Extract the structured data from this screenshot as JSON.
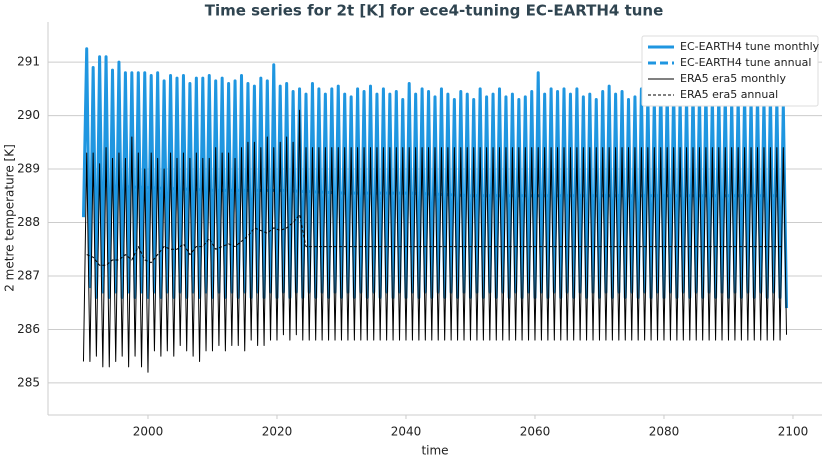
{
  "chart_data": {
    "type": "line",
    "title": "Time series for 2t [K] for ece4-tuning EC-EARTH4 tune",
    "x_label": "time",
    "y_label": "2 metre temperature [K]",
    "xlim": [
      1984.5,
      2104.5
    ],
    "ylim": [
      284.4,
      291.75
    ],
    "xticks": [
      2000,
      2020,
      2040,
      2060,
      2080,
      2100
    ],
    "yticks": [
      285,
      286,
      287,
      288,
      289,
      290,
      291
    ],
    "grid": true,
    "legend": "upper right",
    "x": [
      1990,
      1990.5,
      1991,
      1991.5,
      1992,
      1992.5,
      1993,
      1993.5,
      1994,
      1994.5,
      1995,
      1995.5,
      1996,
      1996.5,
      1997,
      1997.5,
      1998,
      1998.5,
      1999,
      1999.5,
      2000,
      2000.5,
      2001,
      2001.5,
      2002,
      2002.5,
      2003,
      2003.5,
      2004,
      2004.5,
      2005,
      2005.5,
      2006,
      2006.5,
      2007,
      2007.5,
      2008,
      2008.5,
      2009,
      2009.5,
      2010,
      2010.5,
      2011,
      2011.5,
      2012,
      2012.5,
      2013,
      2013.5,
      2014,
      2014.5,
      2015,
      2015.5,
      2016,
      2016.5,
      2017,
      2017.5,
      2018,
      2018.5,
      2019,
      2019.5,
      2020,
      2020.5,
      2021,
      2021.5,
      2022,
      2022.5,
      2023,
      2023.5,
      2024,
      2024.5,
      2025,
      2025.5,
      2026,
      2026.5,
      2027,
      2027.5,
      2028,
      2028.5,
      2029,
      2029.5,
      2030,
      2030.5,
      2031,
      2031.5,
      2032,
      2032.5,
      2033,
      2033.5,
      2034,
      2034.5,
      2035,
      2035.5,
      2036,
      2036.5,
      2037,
      2037.5,
      2038,
      2038.5,
      2039,
      2039.5,
      2040,
      2040.5,
      2041,
      2041.5,
      2042,
      2042.5,
      2043,
      2043.5,
      2044,
      2044.5,
      2045,
      2045.5,
      2046,
      2046.5,
      2047,
      2047.5,
      2048,
      2048.5,
      2049,
      2049.5,
      2050,
      2050.5,
      2051,
      2051.5,
      2052,
      2052.5,
      2053,
      2053.5,
      2054,
      2054.5,
      2055,
      2055.5,
      2056,
      2056.5,
      2057,
      2057.5,
      2058,
      2058.5,
      2059,
      2059.5,
      2060,
      2060.5,
      2061,
      2061.5,
      2062,
      2062.5,
      2063,
      2063.5,
      2064,
      2064.5,
      2065,
      2065.5,
      2066,
      2066.5,
      2067,
      2067.5,
      2068,
      2068.5,
      2069,
      2069.5,
      2070,
      2070.5,
      2071,
      2071.5,
      2072,
      2072.5,
      2073,
      2073.5,
      2074,
      2074.5,
      2075,
      2075.5,
      2076,
      2076.5,
      2077,
      2077.5,
      2078,
      2078.5,
      2079,
      2079.5,
      2080,
      2080.5,
      2081,
      2081.5,
      2082,
      2082.5,
      2083,
      2083.5,
      2084,
      2084.5,
      2085,
      2085.5,
      2086,
      2086.5,
      2087,
      2087.5,
      2088,
      2088.5,
      2089,
      2089.5,
      2090,
      2090.5,
      2091,
      2091.5,
      2092,
      2092.5,
      2093,
      2093.5,
      2094,
      2094.5,
      2095,
      2095.5,
      2096,
      2096.5,
      2097,
      2097.5,
      2098,
      2098.5,
      2099
    ],
    "series": [
      {
        "name": "EC-EARTH4 tune monthly",
        "color": "#1f96e0",
        "line_style": "solid",
        "width": 3,
        "values": [
          288.1,
          291.25,
          286.8,
          290.9,
          286.6,
          291.1,
          286.7,
          291.1,
          286.6,
          290.85,
          286.7,
          291.0,
          286.6,
          290.8,
          286.7,
          290.8,
          286.6,
          290.8,
          286.7,
          290.8,
          286.6,
          290.75,
          286.7,
          290.8,
          286.6,
          290.65,
          286.7,
          290.75,
          286.6,
          290.7,
          286.7,
          290.75,
          286.6,
          290.6,
          286.7,
          290.7,
          286.6,
          290.7,
          286.7,
          290.75,
          286.6,
          290.65,
          286.7,
          290.7,
          286.6,
          290.6,
          286.7,
          290.65,
          286.6,
          290.75,
          286.7,
          290.6,
          286.6,
          290.55,
          286.7,
          290.7,
          286.6,
          290.65,
          286.7,
          290.95,
          286.6,
          290.55,
          286.7,
          290.6,
          286.6,
          290.45,
          286.7,
          290.5,
          286.6,
          290.4,
          286.7,
          290.6,
          286.6,
          290.5,
          286.7,
          290.4,
          286.6,
          290.5,
          286.7,
          290.55,
          286.6,
          290.4,
          286.7,
          290.35,
          286.6,
          290.5,
          286.7,
          290.45,
          286.6,
          290.55,
          286.7,
          290.4,
          286.6,
          290.5,
          286.7,
          290.4,
          286.6,
          290.45,
          286.7,
          290.3,
          286.6,
          290.6,
          286.7,
          290.4,
          286.6,
          290.5,
          286.7,
          290.45,
          286.6,
          290.35,
          286.7,
          290.5,
          286.6,
          290.4,
          286.7,
          290.3,
          286.6,
          290.45,
          286.7,
          290.4,
          286.6,
          290.3,
          286.7,
          290.5,
          286.6,
          290.35,
          286.7,
          290.4,
          286.6,
          290.5,
          286.7,
          290.35,
          286.6,
          290.4,
          286.7,
          290.3,
          286.6,
          290.35,
          286.7,
          290.45,
          286.6,
          290.8,
          286.7,
          290.4,
          286.6,
          290.5,
          286.7,
          290.45,
          286.6,
          290.5,
          286.7,
          290.4,
          286.6,
          290.5,
          286.7,
          290.35,
          286.6,
          290.4,
          286.7,
          290.3,
          286.6,
          290.45,
          286.7,
          290.55,
          286.6,
          290.4,
          286.7,
          290.45,
          286.6,
          290.3,
          286.7,
          290.35,
          286.6,
          290.5,
          286.7,
          290.4,
          286.6,
          290.3,
          286.7,
          290.6,
          286.6,
          290.45,
          286.7,
          290.5,
          286.6,
          290.3,
          286.7,
          290.35,
          286.6,
          290.5,
          286.7,
          290.4,
          286.6,
          290.5,
          286.7,
          290.35,
          286.6,
          290.45,
          286.7,
          290.4,
          286.6,
          290.3,
          286.7,
          290.35,
          286.6,
          290.4,
          286.7,
          290.35,
          286.6,
          290.4,
          286.7,
          290.3,
          286.6,
          290.4,
          286.7,
          290.3,
          286.6,
          290.2,
          286.4
        ]
      },
      {
        "name": "EC-EARTH4 tune annual",
        "color": "#1f96e0",
        "line_style": "dashed",
        "width": 3,
        "x": [
          1990.5,
          2000.5,
          2010.5,
          2020.5,
          2030.5,
          2040.5,
          2050.5,
          2060.5,
          2070.5,
          2080.5,
          2090.5,
          2098.5
        ],
        "values": [
          288.7,
          288.65,
          288.6,
          288.6,
          288.55,
          288.55,
          288.5,
          288.5,
          288.5,
          288.5,
          288.5,
          288.5
        ]
      },
      {
        "name": "ERA5 era5 monthly",
        "color": "#000000",
        "line_style": "solid",
        "width": 1,
        "values": [
          285.4,
          289.3,
          285.4,
          289.3,
          285.5,
          289.1,
          285.3,
          289.4,
          285.3,
          289.2,
          285.4,
          289.3,
          285.5,
          289.2,
          285.3,
          289.6,
          285.5,
          289.3,
          285.3,
          289.0,
          285.2,
          289.3,
          285.6,
          289.2,
          285.5,
          289.0,
          285.6,
          289.3,
          285.5,
          289.2,
          285.7,
          289.3,
          285.6,
          289.2,
          285.5,
          289.3,
          285.4,
          289.2,
          285.6,
          289.2,
          285.6,
          289.4,
          285.7,
          289.3,
          285.6,
          289.3,
          285.7,
          289.2,
          285.7,
          289.4,
          285.6,
          289.5,
          285.8,
          289.5,
          285.7,
          289.4,
          285.7,
          289.6,
          285.8,
          289.4,
          285.8,
          289.5,
          285.9,
          289.6,
          285.8,
          289.5,
          285.9,
          290.1,
          285.8,
          289.4,
          285.8,
          289.4,
          285.8,
          289.4,
          285.8,
          289.4,
          285.8,
          289.4,
          285.8,
          289.4,
          285.8,
          289.4,
          285.8,
          289.4,
          285.8,
          289.4,
          285.8,
          289.4,
          285.8,
          289.4,
          285.8,
          289.4,
          285.8,
          289.4,
          285.8,
          289.4,
          285.8,
          289.4,
          285.8,
          289.4,
          285.8,
          289.4,
          285.8,
          289.4,
          285.8,
          289.4,
          285.8,
          289.4,
          285.8,
          289.4,
          285.8,
          289.4,
          285.8,
          289.4,
          285.8,
          289.4,
          285.8,
          289.4,
          285.8,
          289.4,
          285.8,
          289.4,
          285.8,
          289.4,
          285.8,
          289.4,
          285.8,
          289.4,
          285.8,
          289.4,
          285.8,
          289.4,
          285.8,
          289.4,
          285.8,
          289.4,
          285.8,
          289.4,
          285.8,
          289.4,
          285.8,
          289.4,
          285.8,
          289.4,
          285.8,
          289.4,
          285.8,
          289.4,
          285.8,
          289.4,
          285.8,
          289.4,
          285.8,
          289.4,
          285.8,
          289.4,
          285.8,
          289.4,
          285.8,
          289.4,
          285.8,
          289.4,
          285.8,
          289.4,
          285.8,
          289.4,
          285.8,
          289.4,
          285.8,
          289.4,
          285.8,
          289.4,
          285.8,
          289.4,
          285.8,
          289.4,
          285.8,
          289.4,
          285.8,
          289.4,
          285.8,
          289.4,
          285.8,
          289.4,
          285.8,
          289.4,
          285.8,
          289.4,
          285.8,
          289.4,
          285.8,
          289.4,
          285.8,
          289.4,
          285.8,
          289.4,
          285.8,
          289.4,
          285.8,
          289.4,
          285.8,
          289.4,
          285.8,
          289.4,
          285.8,
          289.4,
          285.8,
          289.4,
          285.8,
          289.4,
          285.8,
          289.4,
          285.8,
          289.4,
          285.8,
          289.4,
          285.8,
          289.4,
          285.9
        ]
      },
      {
        "name": "ERA5 era5 annual",
        "color": "#000000",
        "line_style": "dashed",
        "width": 1,
        "x": [
          1990.5,
          1991.5,
          1992.5,
          1993.5,
          1994.5,
          1995.5,
          1996.5,
          1997.5,
          1998.5,
          1999.5,
          2000.5,
          2001.5,
          2002.5,
          2003.5,
          2004.5,
          2005.5,
          2006.5,
          2007.5,
          2008.5,
          2009.5,
          2010.5,
          2011.5,
          2012.5,
          2013.5,
          2014.5,
          2015.5,
          2016.5,
          2017.5,
          2018.5,
          2019.5,
          2020.5,
          2021.5,
          2022.5,
          2023.5,
          2024.5,
          2098.5
        ],
        "values": [
          287.4,
          287.35,
          287.2,
          287.2,
          287.3,
          287.3,
          287.4,
          287.3,
          287.55,
          287.3,
          287.25,
          287.4,
          287.55,
          287.5,
          287.5,
          287.6,
          287.4,
          287.55,
          287.55,
          287.7,
          287.5,
          287.55,
          287.6,
          287.55,
          287.65,
          287.75,
          287.9,
          287.85,
          287.8,
          287.9,
          287.85,
          287.9,
          288.0,
          288.15,
          287.55,
          287.55
        ]
      }
    ]
  }
}
